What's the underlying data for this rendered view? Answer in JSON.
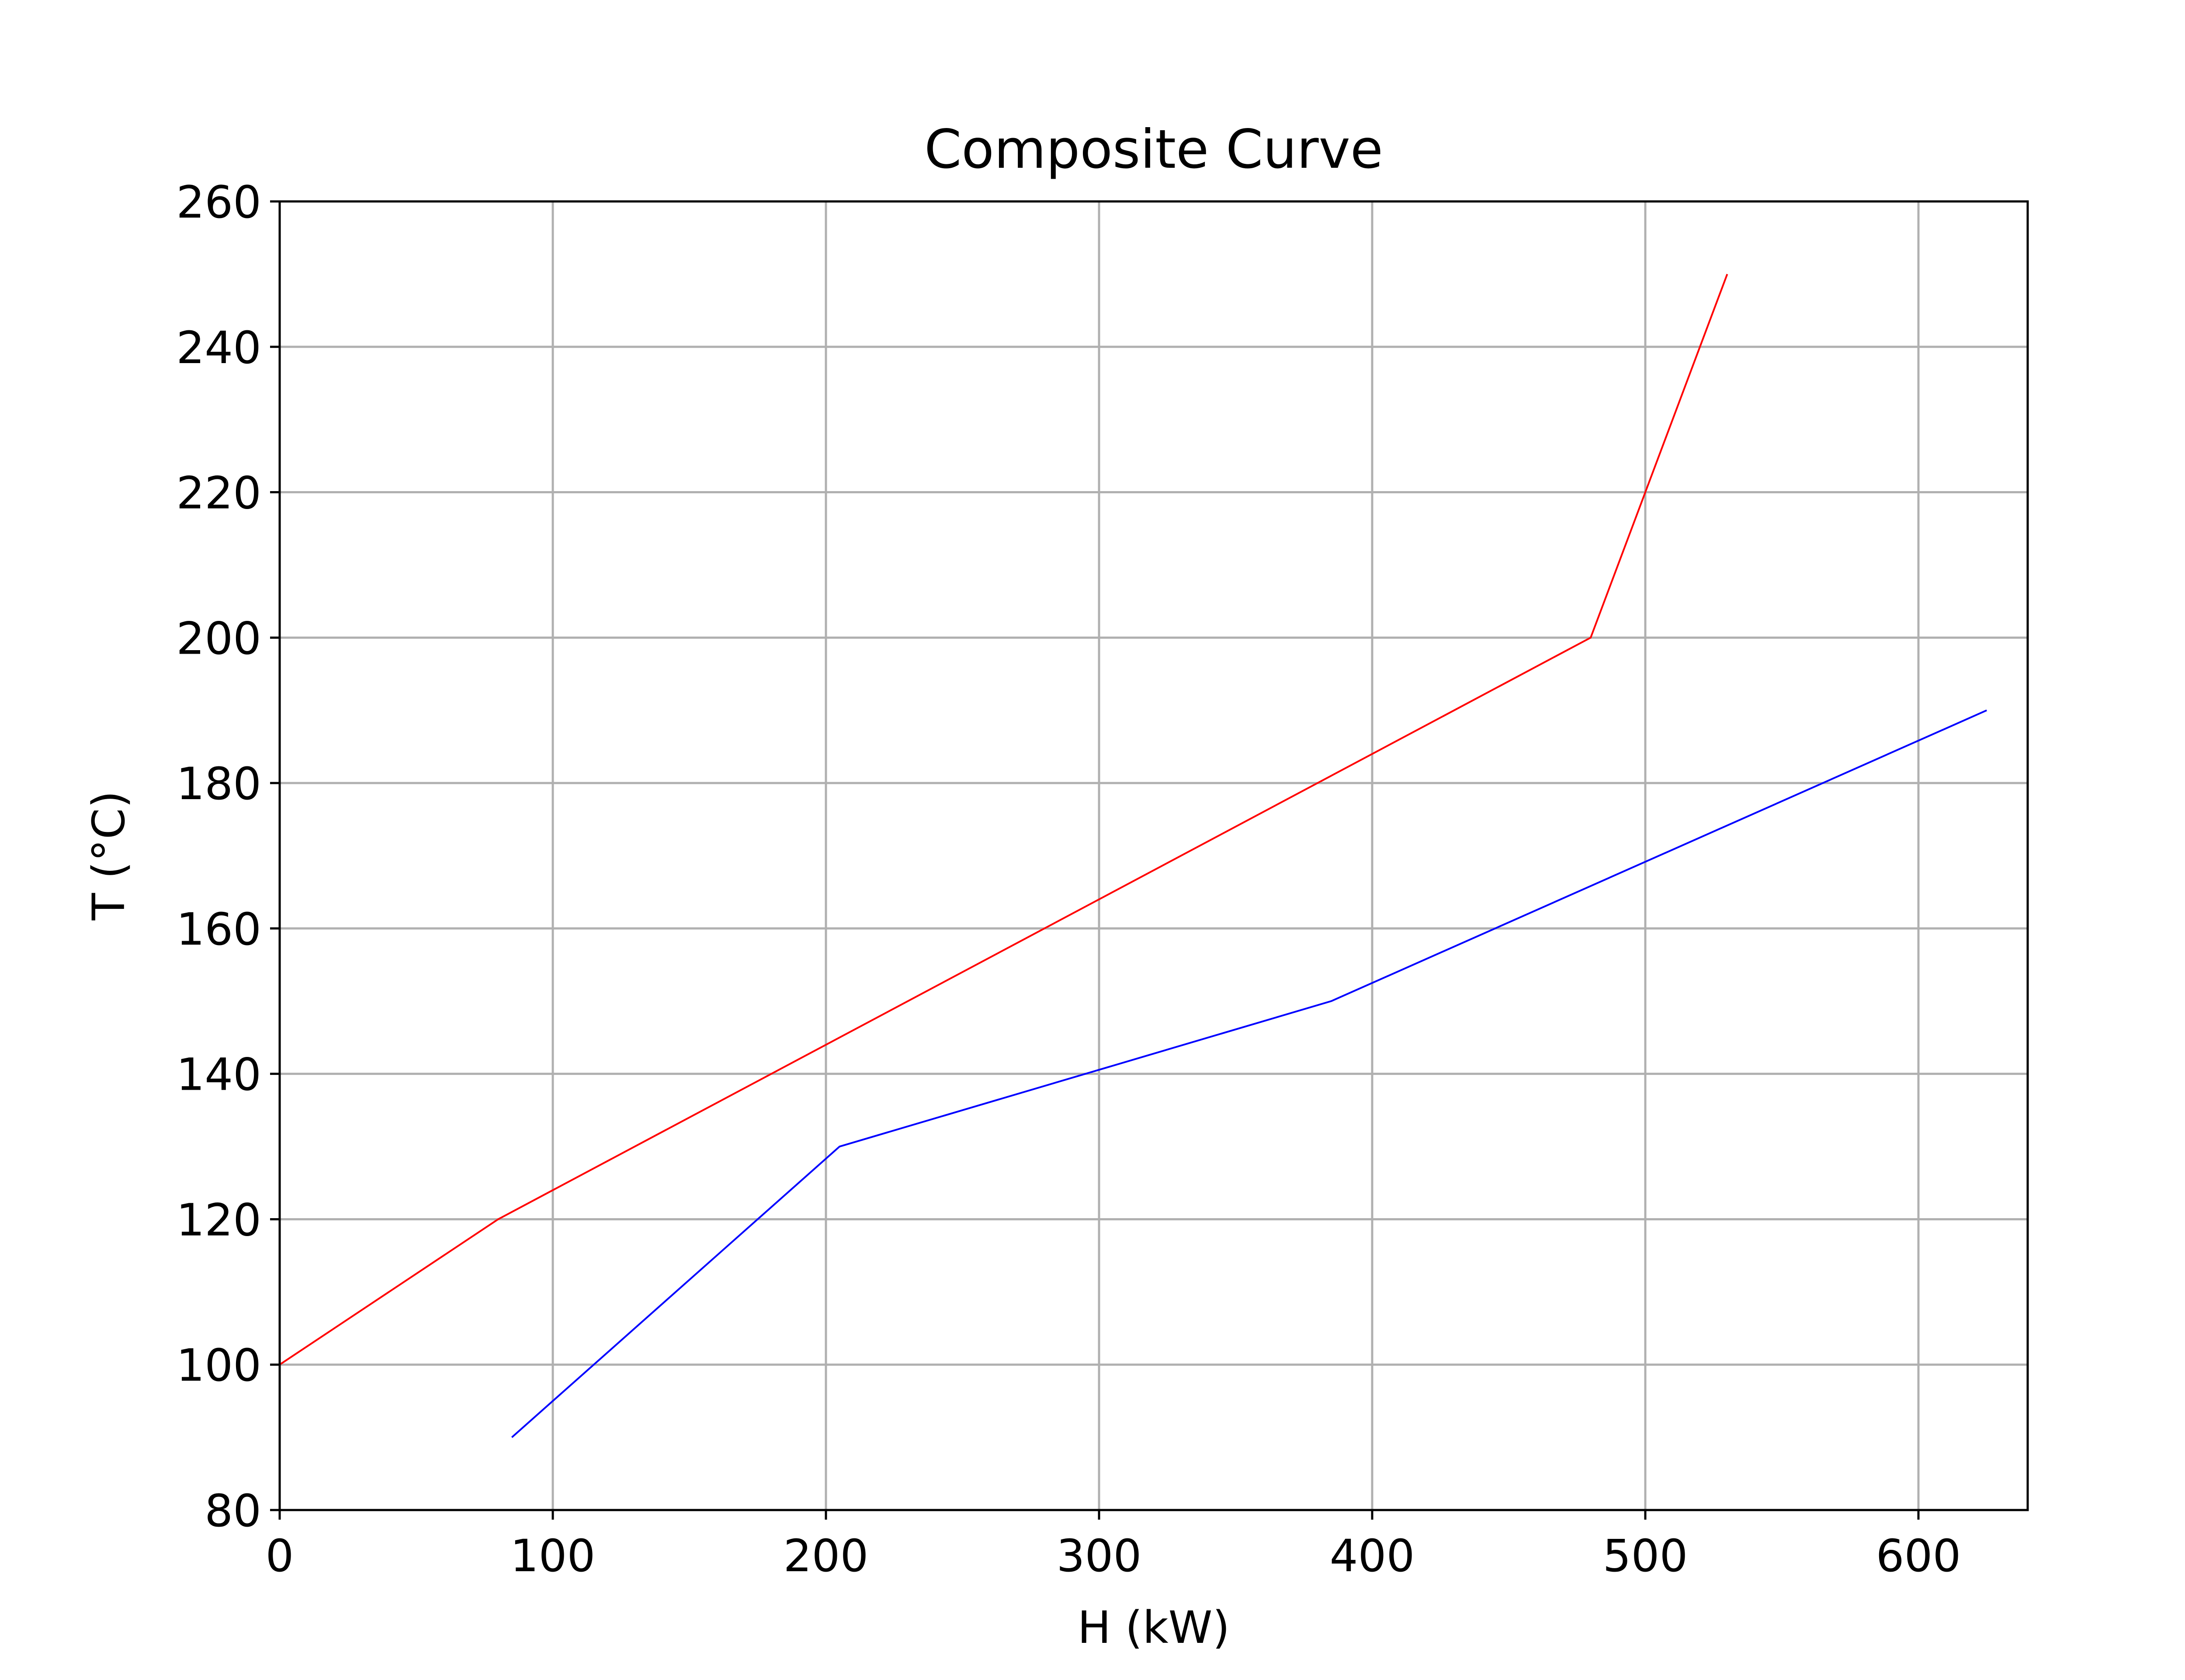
{
  "chart_data": {
    "type": "line",
    "title": "Composite Curve",
    "xlabel": "H (kW)",
    "ylabel": "T (°C)",
    "xlim": [
      0,
      640
    ],
    "ylim": [
      80,
      260
    ],
    "xticks": [
      0,
      100,
      200,
      300,
      400,
      500,
      600
    ],
    "yticks": [
      80,
      100,
      120,
      140,
      160,
      180,
      200,
      220,
      240,
      260
    ],
    "grid": true,
    "series": [
      {
        "color": "#ff0000",
        "points": [
          {
            "x": 0,
            "y": 100
          },
          {
            "x": 80,
            "y": 120
          },
          {
            "x": 480,
            "y": 200
          },
          {
            "x": 530,
            "y": 250
          }
        ]
      },
      {
        "color": "#0000ff",
        "points": [
          {
            "x": 85,
            "y": 90
          },
          {
            "x": 205,
            "y": 130
          },
          {
            "x": 385,
            "y": 150
          },
          {
            "x": 625,
            "y": 190
          }
        ]
      }
    ]
  }
}
